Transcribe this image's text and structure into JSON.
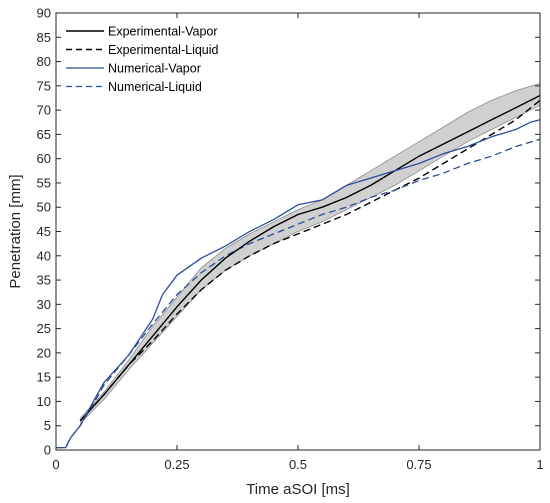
{
  "chart_data": {
    "type": "line",
    "title": "",
    "xlabel": "Time aSOI [ms]",
    "ylabel": "Penetration [mm]",
    "xlim": [
      0,
      1
    ],
    "ylim": [
      0,
      90
    ],
    "x_ticks": [
      {
        "value": 0,
        "label": "0"
      },
      {
        "value": 0.25,
        "label": "0.25"
      },
      {
        "value": 0.5,
        "label": "0.5"
      },
      {
        "value": 0.75,
        "label": "0.75"
      },
      {
        "value": 1,
        "label": "1"
      }
    ],
    "y_ticks": [
      0,
      5,
      10,
      15,
      20,
      25,
      30,
      35,
      40,
      45,
      50,
      55,
      60,
      65,
      70,
      75,
      80,
      85,
      90
    ],
    "grid": false,
    "legend_position": "top-left",
    "colors": {
      "experimental": "#000000",
      "numerical": "#2b4c9c",
      "band_fill": "#c8c8c8",
      "band_edge": "#8a8a8a"
    },
    "band": {
      "name": "Experimental-Vapor uncertainty",
      "x": [
        0.05,
        0.1,
        0.15,
        0.2,
        0.25,
        0.3,
        0.35,
        0.4,
        0.45,
        0.5,
        0.55,
        0.6,
        0.65,
        0.7,
        0.75,
        0.8,
        0.85,
        0.9,
        0.95,
        1.0
      ],
      "lower": [
        5.5,
        10.5,
        16.5,
        22,
        27.5,
        33,
        37,
        40,
        42.5,
        45,
        47,
        49.5,
        52,
        54.5,
        57.5,
        60.5,
        63.5,
        66,
        68.5,
        71
      ],
      "upper": [
        6.5,
        12,
        18.5,
        25.5,
        31.5,
        37.5,
        41.5,
        44.5,
        47,
        49.5,
        51.5,
        54.5,
        57.5,
        60.5,
        63.5,
        66.5,
        69.5,
        72,
        74,
        75.5
      ]
    },
    "series": [
      {
        "name": "Experimental-Vapor",
        "style": "solid",
        "x": [
          0.05,
          0.1,
          0.15,
          0.2,
          0.25,
          0.3,
          0.35,
          0.4,
          0.45,
          0.5,
          0.55,
          0.6,
          0.65,
          0.7,
          0.75,
          0.8,
          0.85,
          0.9,
          0.95,
          1.0
        ],
        "y": [
          6,
          11.5,
          17.5,
          23.5,
          29.5,
          35,
          39.5,
          43,
          46,
          48.5,
          50,
          52,
          54.5,
          57.5,
          60.5,
          63,
          65.5,
          68,
          70.5,
          73
        ]
      },
      {
        "name": "Experimental-Liquid",
        "style": "dashed",
        "x": [
          0.05,
          0.1,
          0.15,
          0.2,
          0.25,
          0.3,
          0.35,
          0.4,
          0.45,
          0.5,
          0.55,
          0.6,
          0.65,
          0.7,
          0.75,
          0.8,
          0.85,
          0.9,
          0.95,
          1.0
        ],
        "y": [
          6,
          11.5,
          17.5,
          22.5,
          28,
          33,
          37,
          40,
          42.5,
          44.5,
          46.5,
          48.5,
          51,
          53.5,
          56,
          59,
          62,
          65,
          68,
          72
        ]
      },
      {
        "name": "Numerical-Vapor",
        "style": "solid",
        "x": [
          0.0,
          0.02,
          0.03,
          0.05,
          0.08,
          0.1,
          0.15,
          0.2,
          0.22,
          0.25,
          0.3,
          0.35,
          0.4,
          0.45,
          0.5,
          0.55,
          0.6,
          0.65,
          0.7,
          0.75,
          0.8,
          0.85,
          0.9,
          0.95,
          0.98,
          1.0
        ],
        "y": [
          0.5,
          0.5,
          2.5,
          5,
          10.5,
          14,
          19.5,
          27,
          32,
          36,
          39.5,
          42,
          45,
          47.5,
          50.5,
          51.5,
          54.5,
          56,
          57.5,
          59,
          61,
          62.5,
          64.5,
          66,
          67.5,
          68
        ]
      },
      {
        "name": "Numerical-Liquid",
        "style": "dashed",
        "x": [
          0.0,
          0.02,
          0.03,
          0.05,
          0.08,
          0.1,
          0.15,
          0.2,
          0.25,
          0.3,
          0.35,
          0.4,
          0.45,
          0.5,
          0.55,
          0.6,
          0.65,
          0.7,
          0.75,
          0.8,
          0.85,
          0.9,
          0.95,
          1.0
        ],
        "y": [
          0.5,
          0.5,
          2.5,
          5,
          10,
          13.5,
          19.5,
          26,
          32,
          36.5,
          40,
          42.5,
          44.5,
          46.5,
          48.5,
          50,
          52,
          53.5,
          55.5,
          57,
          59,
          60.5,
          62.5,
          64
        ]
      }
    ]
  }
}
